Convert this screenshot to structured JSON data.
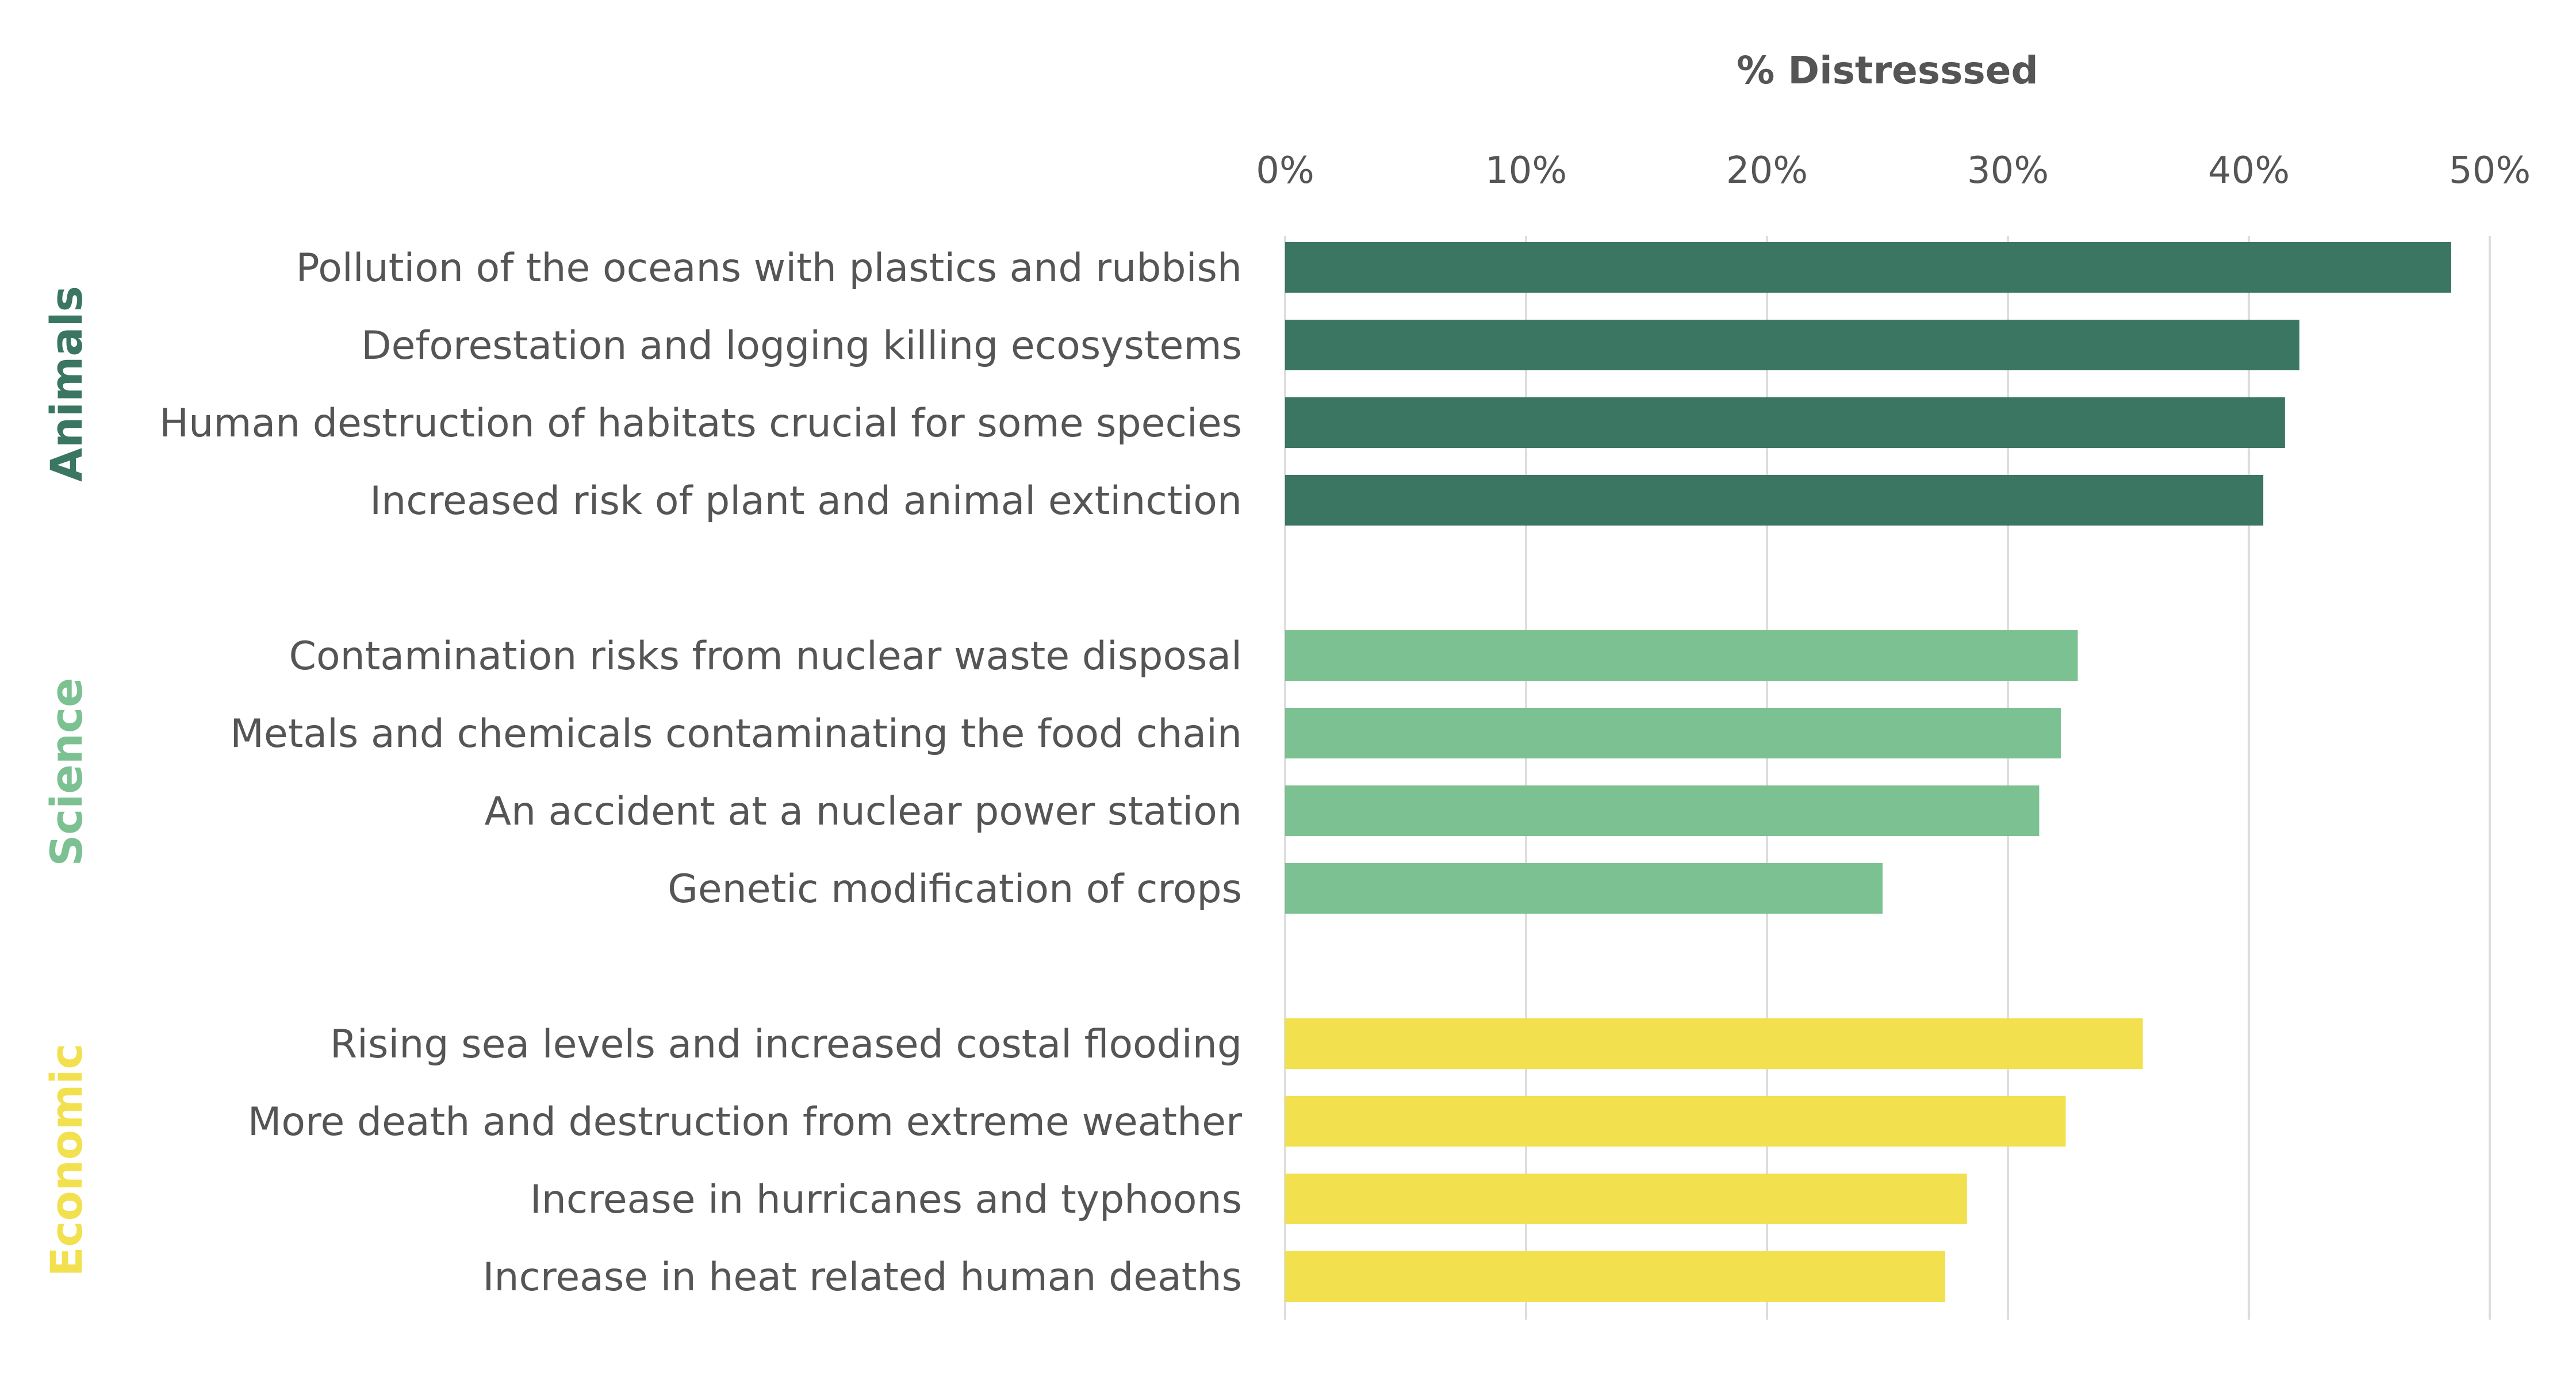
{
  "chart_data": {
    "type": "bar",
    "orientation": "horizontal",
    "xlabel": "% Distresssed",
    "xlim": [
      0,
      50
    ],
    "x_ticks": [
      "0%",
      "10%",
      "20%",
      "30%",
      "40%",
      "50%"
    ],
    "x_tick_values": [
      0,
      10,
      20,
      30,
      40,
      50
    ],
    "grid": "vertical",
    "groups": [
      {
        "name": "Animals",
        "color": "#3a7661",
        "categories": [
          "Pollution of the oceans with plastics and rubbish",
          "Deforestation and logging killing ecosystems",
          "Human destruction of habitats crucial for some species",
          "Increased risk of plant and animal extinction"
        ],
        "values": [
          48.4,
          42.1,
          41.5,
          40.6
        ]
      },
      {
        "name": "Science",
        "color": "#7cc192",
        "categories": [
          "Contamination risks from nuclear waste disposal",
          "Metals and chemicals contaminating the food chain",
          "An accident at a nuclear power station",
          "Genetic modification of crops"
        ],
        "values": [
          32.9,
          32.2,
          31.3,
          24.8
        ]
      },
      {
        "name": "Economic",
        "color": "#f2e04e",
        "categories": [
          "Rising sea levels and increased costal flooding",
          "More death and destruction from extreme weather",
          "Increase in hurricanes and typhoons",
          "Increase in heat related human deaths"
        ],
        "values": [
          35.6,
          32.4,
          28.3,
          27.4
        ]
      }
    ]
  }
}
